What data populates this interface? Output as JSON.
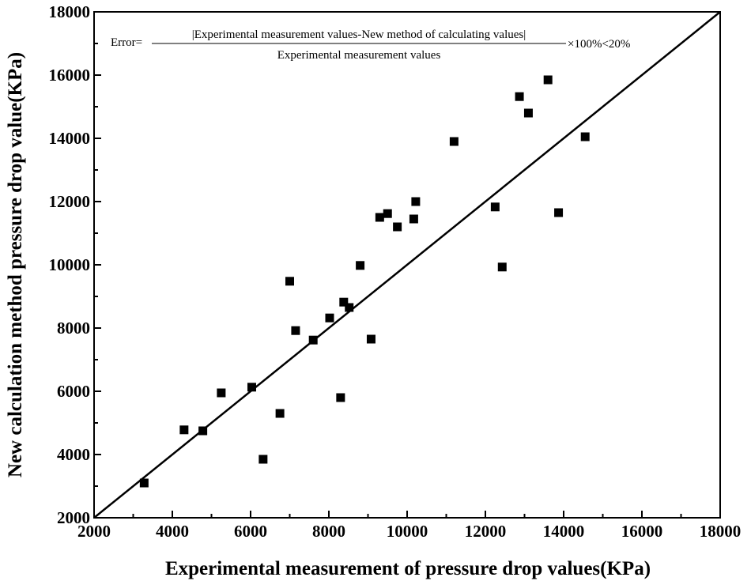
{
  "chart_data": {
    "type": "scatter",
    "xlabel": "Experimental measurement of pressure drop values(KPa)",
    "ylabel": "New calculation method pressure drop value(KPa)",
    "xlim": [
      2000,
      18000
    ],
    "ylim": [
      2000,
      18000
    ],
    "xticks": [
      2000,
      4000,
      6000,
      8000,
      10000,
      12000,
      14000,
      16000,
      18000
    ],
    "yticks": [
      2000,
      4000,
      6000,
      8000,
      10000,
      12000,
      14000,
      16000,
      18000
    ],
    "reference_line": {
      "type": "y=x",
      "from": [
        2000,
        2000
      ],
      "to": [
        18000,
        18000
      ]
    },
    "annotation": {
      "prefix": "Error=",
      "numerator": "|Experimental measurement values-New method of calculating values|",
      "denominator": "Experimental measurement values",
      "suffix": "×100%<20%"
    },
    "series": [
      {
        "name": "data",
        "marker": "square",
        "color": "#000000",
        "points": [
          [
            3280,
            3100
          ],
          [
            4300,
            4780
          ],
          [
            4780,
            4750
          ],
          [
            5250,
            5950
          ],
          [
            6030,
            6130
          ],
          [
            6320,
            3850
          ],
          [
            6750,
            5300
          ],
          [
            7000,
            9480
          ],
          [
            7150,
            7920
          ],
          [
            7600,
            7620
          ],
          [
            8020,
            8320
          ],
          [
            8300,
            5800
          ],
          [
            8380,
            8820
          ],
          [
            8520,
            8650
          ],
          [
            8800,
            9980
          ],
          [
            9080,
            7650
          ],
          [
            9300,
            11500
          ],
          [
            9500,
            11620
          ],
          [
            9750,
            11200
          ],
          [
            10170,
            11450
          ],
          [
            10220,
            12000
          ],
          [
            11200,
            13900
          ],
          [
            12250,
            11830
          ],
          [
            12430,
            9930
          ],
          [
            12870,
            15320
          ],
          [
            13100,
            14800
          ],
          [
            13600,
            15850
          ],
          [
            13870,
            11650
          ],
          [
            14550,
            14050
          ]
        ]
      }
    ]
  }
}
